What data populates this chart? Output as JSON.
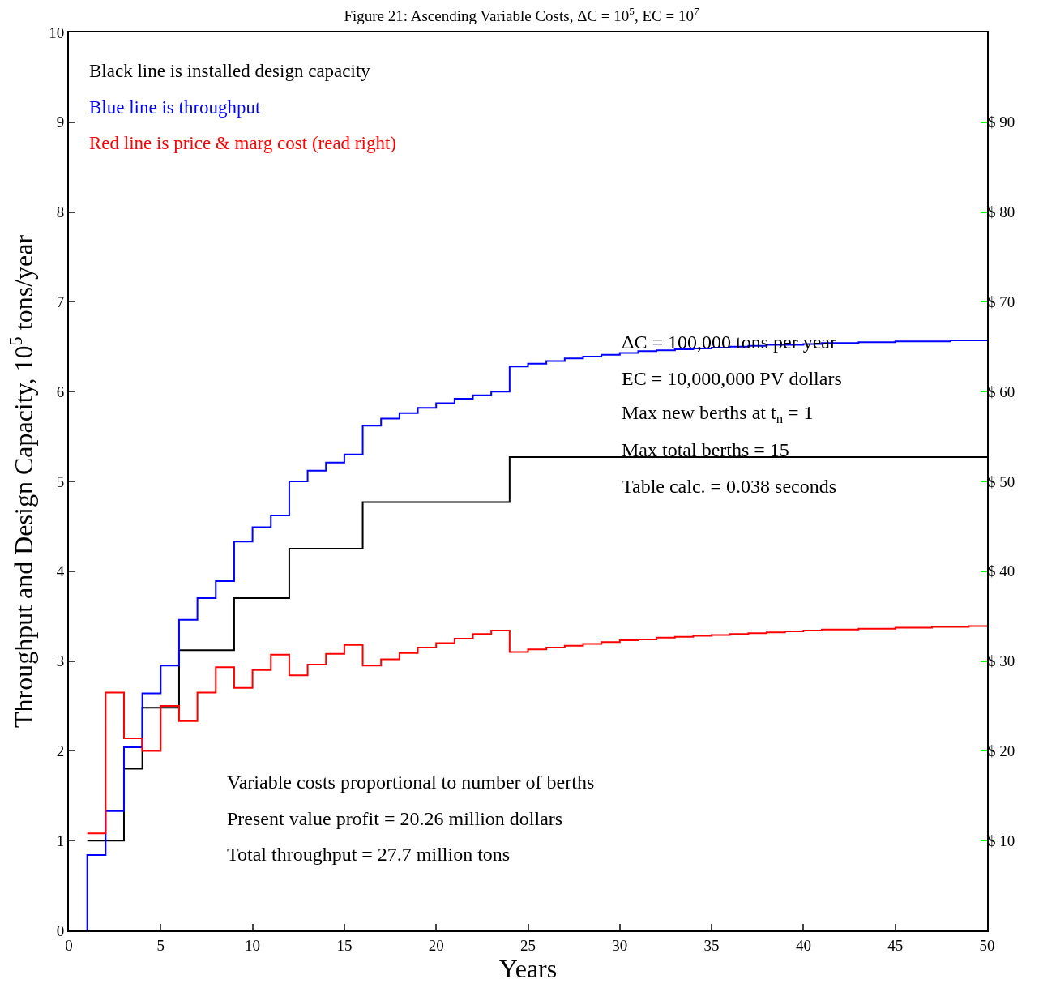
{
  "chart_data": {
    "type": "step",
    "title": "Figure 21: Ascending Variable Costs, ΔC = 10$^{5}$, EC = 10$^{7}$",
    "xlabel": "Years",
    "ylabel": "Throughput and Design Capacity, 10$^{5}$ tons/year",
    "xlim": [
      0,
      50
    ],
    "xticks": [
      0,
      5,
      10,
      15,
      20,
      25,
      30,
      35,
      40,
      45,
      50
    ],
    "ylim": [
      0,
      10
    ],
    "yticks": [
      0,
      1,
      2,
      3,
      4,
      5,
      6,
      7,
      8,
      9,
      10
    ],
    "y2lim": [
      0,
      100
    ],
    "y2ticks": [
      {
        "value": 10,
        "label": "$ 10"
      },
      {
        "value": 20,
        "label": "$ 20"
      },
      {
        "value": 30,
        "label": "$ 30"
      },
      {
        "value": 40,
        "label": "$ 40"
      },
      {
        "value": 50,
        "label": "$ 50"
      },
      {
        "value": 60,
        "label": "$ 60"
      },
      {
        "value": 70,
        "label": "$ 70"
      },
      {
        "value": 80,
        "label": "$ 80"
      },
      {
        "value": 90,
        "label": "$ 90"
      }
    ],
    "grid": false,
    "legend": "top left",
    "marker": "none",
    "line_style": "solid",
    "series": [
      {
        "name": "Black line is installed design capacity",
        "color": "#000000",
        "x": [
          1,
          3,
          4,
          6,
          9,
          12,
          16,
          24,
          50
        ],
        "values": [
          1.0,
          1.8,
          2.48,
          3.12,
          3.7,
          4.25,
          4.77,
          5.27,
          5.27
        ]
      },
      {
        "name": "Blue line is throughput",
        "color": "#0000ff",
        "x": [
          1,
          1,
          2,
          3,
          4,
          5,
          6,
          7,
          8,
          9,
          10,
          11,
          12,
          13,
          14,
          15,
          16,
          17,
          18,
          19,
          20,
          21,
          22,
          23,
          24,
          25,
          26,
          27,
          28,
          29,
          30,
          31,
          32,
          33,
          34,
          35,
          36,
          37,
          38,
          39,
          40,
          41,
          42,
          43,
          44,
          45,
          46,
          47,
          48,
          49,
          50
        ],
        "values": [
          0,
          0.84,
          1.33,
          2.04,
          2.64,
          2.95,
          3.46,
          3.7,
          3.89,
          4.33,
          4.49,
          4.62,
          5.0,
          5.12,
          5.21,
          5.3,
          5.62,
          5.7,
          5.76,
          5.82,
          5.87,
          5.92,
          5.96,
          6.0,
          6.28,
          6.31,
          6.34,
          6.37,
          6.39,
          6.41,
          6.43,
          6.45,
          6.46,
          6.47,
          6.48,
          6.49,
          6.5,
          6.51,
          6.52,
          6.52,
          6.53,
          6.54,
          6.54,
          6.55,
          6.55,
          6.56,
          6.56,
          6.56,
          6.57,
          6.57,
          6.57
        ]
      },
      {
        "name": "Red line is price & marg cost (read right)",
        "color": "#ff0000",
        "axis": "y2",
        "x": [
          1,
          2,
          3,
          4,
          5,
          6,
          7,
          8,
          9,
          10,
          11,
          12,
          13,
          14,
          15,
          16,
          17,
          18,
          19,
          20,
          21,
          22,
          23,
          24,
          25,
          26,
          27,
          28,
          29,
          30,
          31,
          32,
          33,
          34,
          35,
          36,
          37,
          38,
          39,
          40,
          41,
          42,
          43,
          44,
          45,
          46,
          47,
          48,
          49,
          50
        ],
        "values": [
          10.8,
          26.5,
          21.4,
          20.0,
          25.0,
          23.3,
          26.5,
          29.3,
          27.0,
          29.0,
          30.7,
          28.4,
          29.6,
          30.8,
          31.8,
          29.5,
          30.2,
          30.9,
          31.5,
          32.0,
          32.5,
          33.0,
          33.4,
          31.0,
          31.3,
          31.5,
          31.7,
          31.9,
          32.1,
          32.3,
          32.4,
          32.6,
          32.7,
          32.8,
          32.9,
          33.0,
          33.1,
          33.2,
          33.3,
          33.4,
          33.5,
          33.5,
          33.6,
          33.6,
          33.7,
          33.7,
          33.8,
          33.8,
          33.9,
          33.9
        ]
      }
    ],
    "annotations": [
      "ΔC = 100,000 tons per year",
      "EC = 10,000,000 PV dollars",
      "Max new berths at t$_{n}$ = 1",
      "Max total berths = 15",
      "Table calc. = 0.038 seconds",
      "Variable costs proportional to number of berths",
      "Present value profit = 20.26 million dollars",
      "Total throughput = 27.7 million tons"
    ]
  }
}
